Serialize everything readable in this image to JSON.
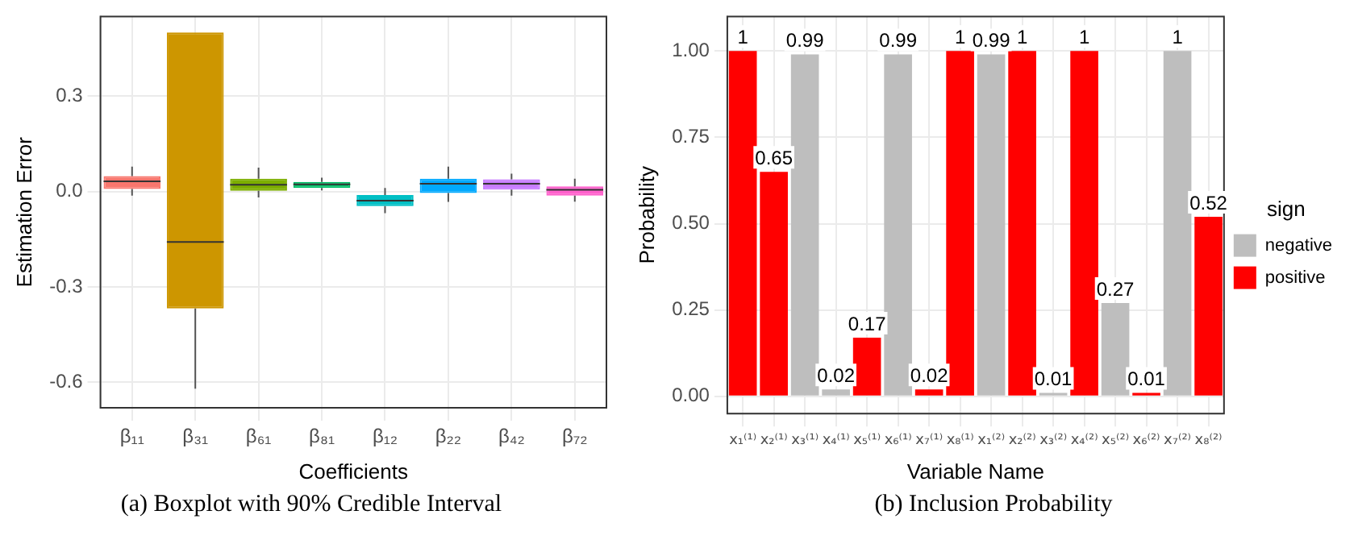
{
  "chart_data": [
    {
      "type": "box",
      "ylabel": "Estimation Error",
      "xlabel": "Coefficients",
      "categories": [
        "β₁₁",
        "β₃₁",
        "β₆₁",
        "β₈₁",
        "β₁₂",
        "β₂₂",
        "β₄₂",
        "β₇₂"
      ],
      "colors": [
        "#f8766d",
        "#cd9600",
        "#7cae00",
        "#00be67",
        "#00bfc4",
        "#00a9ff",
        "#c77cff",
        "#ff61cc"
      ],
      "boxes": [
        {
          "low": -0.013,
          "q1": 0.008,
          "median": 0.032,
          "q3": 0.048,
          "high": 0.078
        },
        {
          "low": -0.62,
          "q1": -0.368,
          "median": -0.159,
          "q3": 0.5,
          "high": 0.5
        },
        {
          "low": -0.019,
          "q1": 0.002,
          "median": 0.021,
          "q3": 0.04,
          "high": 0.075
        },
        {
          "low": 0.003,
          "q1": 0.011,
          "median": 0.022,
          "q3": 0.03,
          "high": 0.043
        },
        {
          "low": -0.068,
          "q1": -0.046,
          "median": -0.029,
          "q3": -0.011,
          "high": 0.011
        },
        {
          "low": -0.033,
          "q1": -0.005,
          "median": 0.024,
          "q3": 0.04,
          "high": 0.078
        },
        {
          "low": -0.013,
          "q1": 0.006,
          "median": 0.024,
          "q3": 0.038,
          "high": 0.056
        },
        {
          "low": -0.032,
          "q1": -0.013,
          "median": 0.005,
          "q3": 0.016,
          "high": 0.04
        }
      ],
      "ylim": [
        -0.68,
        0.55
      ],
      "yticks": [
        {
          "value": 0.3,
          "label": "0.3"
        },
        {
          "value": 0,
          "label": "0.0"
        },
        {
          "value": -0.3,
          "label": "-0.3"
        },
        {
          "value": -0.6,
          "label": "-0.6"
        }
      ],
      "grid": true,
      "legend": false,
      "annotations": [
        "(a) Boxplot with 90% Credible Interval"
      ]
    },
    {
      "type": "bar",
      "ylabel": "Probability",
      "xlabel": "Variable Name",
      "legend_title": "sign",
      "legend": "right",
      "categories": [
        "x₁⁽¹⁾",
        "x₂⁽¹⁾",
        "x₃⁽¹⁾",
        "x₄⁽¹⁾",
        "x₅⁽¹⁾",
        "x₆⁽¹⁾",
        "x₇⁽¹⁾",
        "x₈⁽¹⁾",
        "x₁⁽²⁾",
        "x₂⁽²⁾",
        "x₃⁽²⁾",
        "x₄⁽²⁾",
        "x₅⁽²⁾",
        "x₆⁽²⁾",
        "x₇⁽²⁾",
        "x₈⁽²⁾"
      ],
      "series": [
        {
          "name": "negative",
          "color": "#bebebe",
          "values": [
            null,
            null,
            0.99,
            0.02,
            null,
            0.99,
            null,
            null,
            0.99,
            null,
            0.01,
            null,
            0.27,
            null,
            1,
            null
          ]
        },
        {
          "name": "positive",
          "color": "#ff0000",
          "values": [
            1,
            0.65,
            null,
            null,
            0.17,
            null,
            0.02,
            1,
            null,
            1,
            null,
            1,
            null,
            0.01,
            null,
            0.52
          ]
        }
      ],
      "ylim": [
        -0.05,
        1.1
      ],
      "yticks": [
        {
          "value": 0,
          "label": "0.00"
        },
        {
          "value": 0.25,
          "label": "0.25"
        },
        {
          "value": 0.5,
          "label": "0.50"
        },
        {
          "value": 0.75,
          "label": "0.75"
        },
        {
          "value": 1,
          "label": "1.00"
        }
      ],
      "grid": true,
      "data_labels": true,
      "annotations": [
        "(b) Inclusion Probability"
      ]
    }
  ]
}
